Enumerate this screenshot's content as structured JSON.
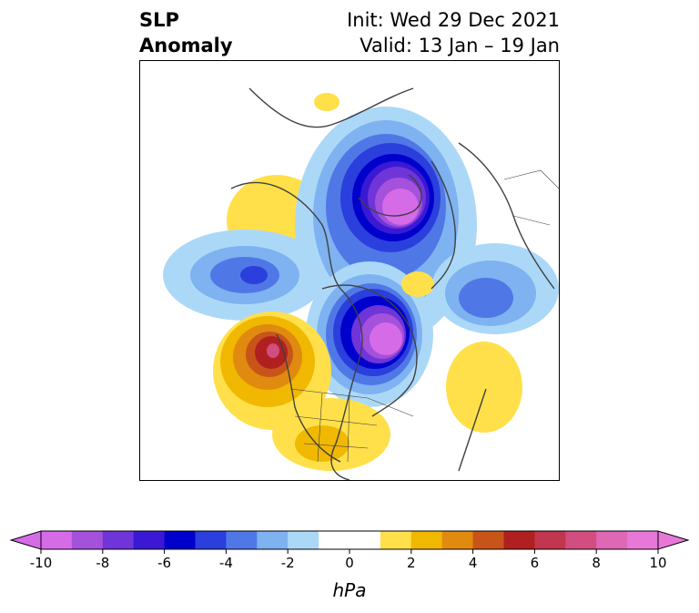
{
  "title": {
    "left_line1": "SLP",
    "left_line2": "Anomaly",
    "right_line1": "Init: Wed 29 Dec 2021",
    "right_line2": "Valid: 13 Jan – 19 Jan"
  },
  "colorbar": {
    "unit": "hPa",
    "ticks": [
      "-10",
      "-8",
      "-6",
      "-4",
      "-2",
      "0",
      "2",
      "4",
      "6",
      "8",
      "10"
    ],
    "colors": [
      "#d66be8",
      "#a451dc",
      "#6f35d8",
      "#3b19d4",
      "#0000cc",
      "#2a3fdc",
      "#4f78e6",
      "#7fb2f0",
      "#acd8f8",
      "#ffffff",
      "#ffffff",
      "#ffe04a",
      "#f0b800",
      "#e08a10",
      "#c8541a",
      "#b02020",
      "#c23650",
      "#d24d80",
      "#de68b4",
      "#e878d8"
    ],
    "under_color": "#d66be8",
    "over_color": "#e878d8"
  },
  "map": {
    "projection": "polar-stereographic",
    "region": "Northern Hemisphere / North America"
  }
}
